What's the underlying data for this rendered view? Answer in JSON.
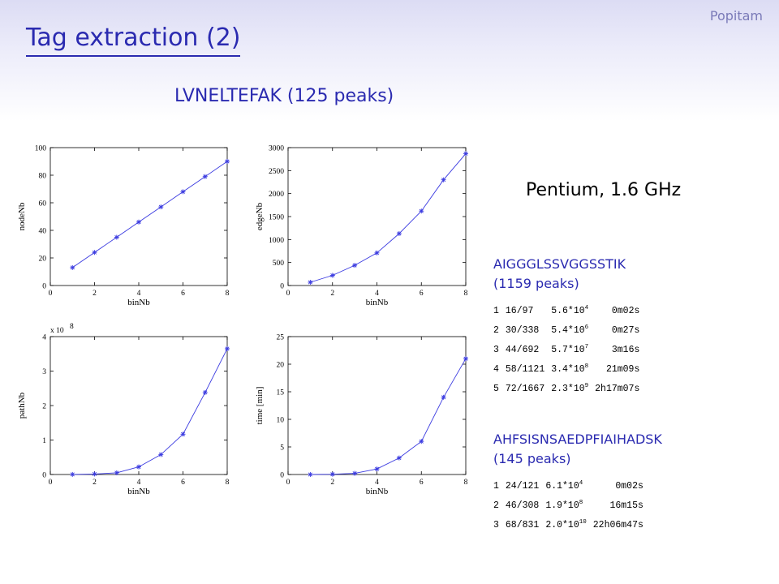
{
  "header": {
    "brand": "Popitam",
    "title": "Tag extraction (2)",
    "subtitle": "LVNELTEFAK (125 peaks)",
    "cpu": "Pentium, 1.6 GHz"
  },
  "colors": {
    "title": "#2a2ab0",
    "series": "#3a3ae0"
  },
  "chart_data": [
    {
      "type": "line",
      "title": "",
      "xlabel": "binNb",
      "ylabel": "nodeNb",
      "x": [
        1,
        2,
        3,
        4,
        5,
        6,
        7,
        8
      ],
      "series": [
        {
          "values": [
            13,
            24,
            35,
            46,
            57,
            68,
            79,
            90
          ]
        }
      ],
      "xlim": [
        0,
        8
      ],
      "ylim": [
        0,
        100
      ],
      "xticks": [
        "0",
        "2",
        "4",
        "6",
        "8"
      ],
      "yticks": [
        "0",
        "20",
        "40",
        "60",
        "80",
        "100"
      ],
      "marker": "asterisk",
      "grid": false
    },
    {
      "type": "line",
      "title": "",
      "xlabel": "binNb",
      "ylabel": "edgeNb",
      "x": [
        1,
        2,
        3,
        4,
        5,
        6,
        7,
        8
      ],
      "series": [
        {
          "values": [
            70,
            220,
            440,
            710,
            1130,
            1620,
            2300,
            2870
          ]
        }
      ],
      "xlim": [
        0,
        8
      ],
      "ylim": [
        0,
        3000
      ],
      "xticks": [
        "0",
        "2",
        "4",
        "6",
        "8"
      ],
      "yticks": [
        "0",
        "500",
        "1000",
        "1500",
        "2000",
        "2500",
        "3000"
      ],
      "marker": "asterisk",
      "grid": false
    },
    {
      "type": "line",
      "title": "",
      "xlabel": "binNb",
      "ylabel": "pathNb",
      "multiplier_label": "x 10",
      "multiplier_exponent": "8",
      "x": [
        1,
        2,
        3,
        4,
        5,
        6,
        7,
        8
      ],
      "series": [
        {
          "values": [
            0.002,
            0.015,
            0.05,
            0.22,
            0.58,
            1.17,
            2.38,
            3.65
          ]
        }
      ],
      "xlim": [
        0,
        8
      ],
      "ylim": [
        0,
        4
      ],
      "xticks": [
        "0",
        "2",
        "4",
        "6",
        "8"
      ],
      "yticks": [
        "0",
        "1",
        "2",
        "3",
        "4"
      ],
      "marker": "asterisk",
      "grid": false
    },
    {
      "type": "line",
      "title": "",
      "xlabel": "binNb",
      "ylabel": "time [min]",
      "x": [
        1,
        2,
        3,
        4,
        5,
        6,
        7,
        8
      ],
      "series": [
        {
          "values": [
            0,
            0.05,
            0.2,
            1,
            3,
            6,
            14,
            21
          ]
        }
      ],
      "xlim": [
        0,
        8
      ],
      "ylim": [
        0,
        25
      ],
      "xticks": [
        "0",
        "2",
        "4",
        "6",
        "8"
      ],
      "yticks": [
        "0",
        "5",
        "10",
        "15",
        "20",
        "25"
      ],
      "marker": "asterisk",
      "grid": false
    }
  ],
  "results": [
    {
      "sequence": "AIGGGLSSVGGSSTIK",
      "peaks": "(1159 peaks)",
      "rows": [
        {
          "n": "1",
          "ratio": "16/97",
          "base": "5.6*10",
          "exp": "4",
          "time": "0m02s"
        },
        {
          "n": "2",
          "ratio": "30/338",
          "base": "5.4*10",
          "exp": "6",
          "time": "0m27s"
        },
        {
          "n": "3",
          "ratio": "44/692",
          "base": "5.7*10",
          "exp": "7",
          "time": "3m16s"
        },
        {
          "n": "4",
          "ratio": "58/1121",
          "base": "3.4*10",
          "exp": "8",
          "time": "21m09s"
        },
        {
          "n": "5",
          "ratio": "72/1667",
          "base": "2.3*10",
          "exp": "9",
          "time": "2h17m07s"
        }
      ]
    },
    {
      "sequence": "AHFSISNSAEDPFIAIHADSK",
      "peaks": "(145 peaks)",
      "rows": [
        {
          "n": "1",
          "ratio": "24/121",
          "base": "6.1*10",
          "exp": "4",
          "time": "0m02s"
        },
        {
          "n": "2",
          "ratio": "46/308",
          "base": "1.9*10",
          "exp": "8",
          "time": "16m15s"
        },
        {
          "n": "3",
          "ratio": "68/831",
          "base": "2.0*10",
          "exp": "10",
          "time": "22h06m47s"
        }
      ]
    }
  ]
}
